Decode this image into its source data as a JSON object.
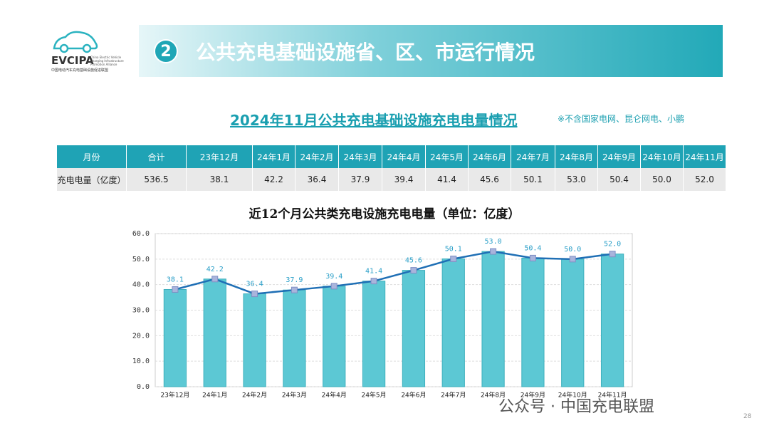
{
  "logo": {
    "name": "EVCIPA",
    "english": "China Electric Vehicle Charging Infrastructure Promotion Alliance",
    "chinese": "中国电动汽车充电基础设施促进联盟"
  },
  "header": {
    "number": "2",
    "title": "公共充电基础设施省、区、市运行情况"
  },
  "subtitle": "2024年11月公共充电基础设施充电电量情况",
  "note": "※不含国家电网、昆仑网电、小鹏",
  "table": {
    "columns": [
      "月份",
      "合计",
      "23年12月",
      "24年1月",
      "24年2月",
      "24年3月",
      "24年4月",
      "24年5月",
      "24年6月",
      "24年7月",
      "24年8月",
      "24年9月",
      "24年10月",
      "24年11月"
    ],
    "rows": [
      [
        "充电电量（亿度）",
        "536.5",
        "38.1",
        "42.2",
        "36.4",
        "37.9",
        "39.4",
        "41.4",
        "45.6",
        "50.1",
        "53.0",
        "50.4",
        "50.0",
        "52.0"
      ]
    ]
  },
  "chart_data": {
    "type": "bar",
    "title": "近12个月公共类充电设施充电电量（单位：亿度）",
    "categories": [
      "23年12月",
      "24年1月",
      "24年2月",
      "24年3月",
      "24年4月",
      "24年5月",
      "24年6月",
      "24年7月",
      "24年8月",
      "24年9月",
      "24年10月",
      "24年11月"
    ],
    "values": [
      38.1,
      42.2,
      36.4,
      37.9,
      39.4,
      41.4,
      45.6,
      50.1,
      53.0,
      50.4,
      50.0,
      52.0
    ],
    "value_labels": [
      "38.1",
      "42.2",
      "36.4",
      "37.9",
      "39.4",
      "41.4",
      "45.6",
      "50.1",
      "53.0",
      "50.4",
      "50.0",
      "52.0"
    ],
    "color": "#5cc8d4",
    "line_color": "#1f6fb5",
    "line_overlay": true,
    "ylim": [
      0,
      60
    ],
    "yticks": [
      {
        "value": 0,
        "label": "0.0"
      },
      {
        "value": 10,
        "label": "10.0"
      },
      {
        "value": 20,
        "label": "20.0"
      },
      {
        "value": 30,
        "label": "30.0"
      },
      {
        "value": 40,
        "label": "40.0"
      },
      {
        "value": 50,
        "label": "50.0"
      },
      {
        "value": 60,
        "label": "60.0"
      }
    ],
    "grid": true
  },
  "footer": {
    "account": "公众号 · 中国充电联盟",
    "page": "28"
  }
}
